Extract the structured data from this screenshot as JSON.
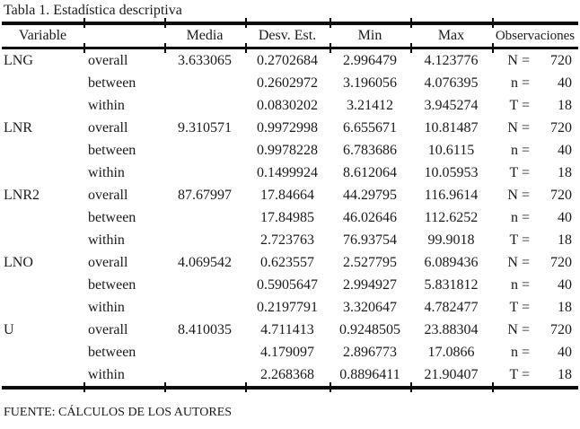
{
  "title": "Tabla 1. Estadística descriptiva",
  "source_note": "FUENTE: CÁLCULOS DE LOS AUTORES",
  "table": {
    "headers": {
      "variable": "Variable",
      "media": "Media",
      "desv_est": "Desv. Est.",
      "min": "Min",
      "max": "Max",
      "observaciones": "Observaciones"
    },
    "groups": [
      {
        "variable": "LNG",
        "rows": [
          {
            "level": "overall",
            "media": "3.633065",
            "desv_est": "0.2702684",
            "min": "2.996479",
            "max": "4.123776",
            "obs_label": "N =",
            "obs_value": "720"
          },
          {
            "level": "between",
            "media": "",
            "desv_est": "0.2602972",
            "min": "3.196056",
            "max": "4.076395",
            "obs_label": "n =",
            "obs_value": "40"
          },
          {
            "level": "within",
            "media": "",
            "desv_est": "0.0830202",
            "min": "3.21412",
            "max": "3.945274",
            "obs_label": "T =",
            "obs_value": "18"
          }
        ]
      },
      {
        "variable": "LNR",
        "rows": [
          {
            "level": "overall",
            "media": "9.310571",
            "desv_est": "0.9972998",
            "min": "6.655671",
            "max": "10.81487",
            "obs_label": "N =",
            "obs_value": "720"
          },
          {
            "level": "between",
            "media": "",
            "desv_est": "0.9978228",
            "min": "6.783686",
            "max": "10.6115",
            "obs_label": "n =",
            "obs_value": "40"
          },
          {
            "level": "within",
            "media": "",
            "desv_est": "0.1499924",
            "min": "8.612064",
            "max": "10.05953",
            "obs_label": "T =",
            "obs_value": "18"
          }
        ]
      },
      {
        "variable": "LNR2",
        "rows": [
          {
            "level": "overall",
            "media": "87.67997",
            "desv_est": "17.84664",
            "min": "44.29795",
            "max": "116.9614",
            "obs_label": "N =",
            "obs_value": "720"
          },
          {
            "level": "between",
            "media": "",
            "desv_est": "17.84985",
            "min": "46.02646",
            "max": "112.6252",
            "obs_label": "n =",
            "obs_value": "40"
          },
          {
            "level": "within",
            "media": "",
            "desv_est": "2.723763",
            "min": "76.93754",
            "max": "99.9018",
            "obs_label": "T =",
            "obs_value": "18"
          }
        ]
      },
      {
        "variable": "LNO",
        "rows": [
          {
            "level": "overall",
            "media": "4.069542",
            "desv_est": "0.623557",
            "min": "2.527795",
            "max": "6.089436",
            "obs_label": "N =",
            "obs_value": "720"
          },
          {
            "level": "between",
            "media": "",
            "desv_est": "0.5905647",
            "min": "2.994927",
            "max": "5.831812",
            "obs_label": "n =",
            "obs_value": "40"
          },
          {
            "level": "within",
            "media": "",
            "desv_est": "0.2197791",
            "min": "3.320647",
            "max": "4.782477",
            "obs_label": "T =",
            "obs_value": "18"
          }
        ]
      },
      {
        "variable": "U",
        "rows": [
          {
            "level": "overall",
            "media": "8.410035",
            "desv_est": "4.711413",
            "min": "0.9248505",
            "max": "23.88304",
            "obs_label": "N =",
            "obs_value": "720"
          },
          {
            "level": "between",
            "media": "",
            "desv_est": "4.179097",
            "min": "2.896773",
            "max": "17.0866",
            "obs_label": "n =",
            "obs_value": "40"
          },
          {
            "level": "within",
            "media": "",
            "desv_est": "2.268368",
            "min": "0.8896411",
            "max": "21.90407",
            "obs_label": "T =",
            "obs_value": "18"
          }
        ]
      }
    ]
  }
}
